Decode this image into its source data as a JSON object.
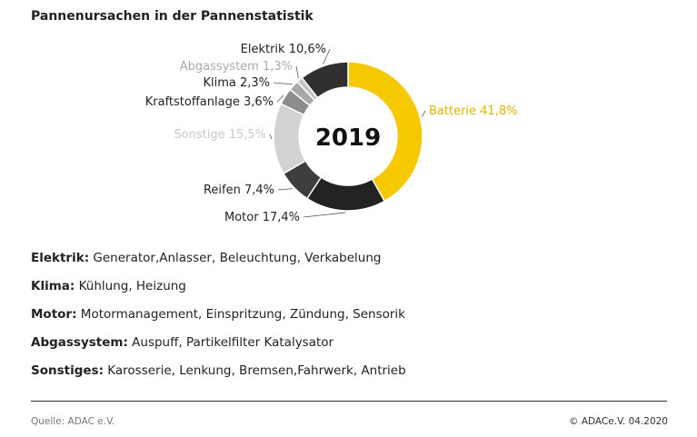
{
  "title": "Pannenursachen in der Pannenstatistik",
  "chart_data": {
    "type": "pie",
    "center_label": "2019",
    "slices": [
      {
        "label": "Batterie 41,8%",
        "value": 41.8,
        "color": "#f6c800",
        "label_color": "#e0b400"
      },
      {
        "label": "Motor 17,4%",
        "value": 17.4,
        "color": "#222222",
        "label_color": "#222222"
      },
      {
        "label": "Reifen 7,4%",
        "value": 7.4,
        "color": "#3d3d3d",
        "label_color": "#222222"
      },
      {
        "label": "Sonstige 15,5%",
        "value": 15.5,
        "color": "#d2d2d2",
        "label_color": "#c8c8c8"
      },
      {
        "label": "Kraftstoffanlage 3,6%",
        "value": 3.6,
        "color": "#8c8c8c",
        "label_color": "#222222"
      },
      {
        "label": "Klima 2,3%",
        "value": 2.3,
        "color": "#a8a8a8",
        "label_color": "#222222"
      },
      {
        "label": "Abgassystem 1,3%",
        "value": 1.3,
        "color": "#c4c4c4",
        "label_color": "#aaaaaa"
      },
      {
        "label": "Elektrik 10,6%",
        "value": 10.6,
        "color": "#303030",
        "label_color": "#222222"
      }
    ]
  },
  "definitions": [
    {
      "term": "Elektrik:",
      "text": " Generator,Anlasser, Beleuchtung, Verkabelung"
    },
    {
      "term": "Klima:",
      "text": " Kühlung, Heizung"
    },
    {
      "term": "Motor:",
      "text": " Motormanagement, Einspritzung, Zündung, Sensorik"
    },
    {
      "term": "Abgassystem:",
      "text": " Auspuff, Partikelfilter Katalysator"
    },
    {
      "term": "Sonstiges:",
      "text": " Karosserie, Lenkung, Bremsen,Fahrwerk, Antrieb"
    }
  ],
  "source": "Quelle: ADAC e.V.",
  "copyright": "© ADACe.V. 04.2020"
}
